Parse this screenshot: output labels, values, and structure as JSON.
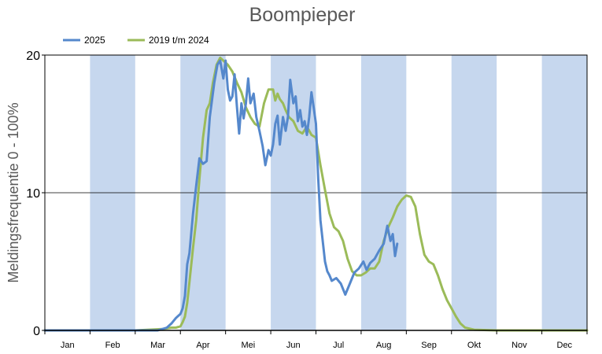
{
  "chart_data": {
    "type": "line",
    "title": "Boompieper",
    "xlabel": "",
    "ylabel": "Meldingsfrequentie 0 - 100%",
    "ylim": [
      0,
      20
    ],
    "yticks": [
      0,
      10,
      20
    ],
    "categories": [
      "Jan",
      "Feb",
      "Mar",
      "Apr",
      "Mei",
      "Jun",
      "Jul",
      "Aug",
      "Sep",
      "Okt",
      "Nov",
      "Dec"
    ],
    "shaded_months": [
      "Feb",
      "Apr",
      "Jun",
      "Aug",
      "Okt",
      "Dec"
    ],
    "x_unit": "month (0 = 1 Jan, 12 = 31 Dec)",
    "legend_position": "top-left",
    "grid": "horizontal line at 10",
    "colors": {
      "shade": "#c6d7ee",
      "series_2025": "#5588cc",
      "series_2019_2024": "#9bbb59"
    },
    "series": [
      {
        "name": "2025",
        "color": "#5588cc",
        "points": [
          [
            0,
            0
          ],
          [
            1,
            0
          ],
          [
            2,
            0
          ],
          [
            2.5,
            0
          ],
          [
            2.7,
            0.2
          ],
          [
            2.8,
            0.5
          ],
          [
            2.9,
            0.9
          ],
          [
            3.0,
            1.2
          ],
          [
            3.05,
            1.6
          ],
          [
            3.1,
            2.5
          ],
          [
            3.15,
            4.8
          ],
          [
            3.2,
            5.6
          ],
          [
            3.28,
            8.5
          ],
          [
            3.35,
            10.5
          ],
          [
            3.42,
            12.5
          ],
          [
            3.5,
            12.1
          ],
          [
            3.58,
            12.3
          ],
          [
            3.65,
            15.5
          ],
          [
            3.75,
            18.0
          ],
          [
            3.82,
            19.3
          ],
          [
            3.88,
            19.6
          ],
          [
            3.95,
            18.3
          ],
          [
            4.0,
            19.6
          ],
          [
            4.05,
            17.5
          ],
          [
            4.1,
            16.7
          ],
          [
            4.15,
            17.0
          ],
          [
            4.2,
            18.6
          ],
          [
            4.25,
            16.3
          ],
          [
            4.3,
            14.3
          ],
          [
            4.35,
            16.5
          ],
          [
            4.4,
            15.4
          ],
          [
            4.45,
            16.5
          ],
          [
            4.5,
            18.3
          ],
          [
            4.55,
            16.5
          ],
          [
            4.62,
            17.2
          ],
          [
            4.68,
            15.5
          ],
          [
            4.75,
            14.5
          ],
          [
            4.82,
            13.4
          ],
          [
            4.88,
            12.0
          ],
          [
            4.95,
            13.1
          ],
          [
            5.0,
            12.7
          ],
          [
            5.05,
            13.5
          ],
          [
            5.1,
            15.0
          ],
          [
            5.15,
            15.6
          ],
          [
            5.2,
            13.5
          ],
          [
            5.27,
            15.5
          ],
          [
            5.33,
            14.5
          ],
          [
            5.38,
            15.5
          ],
          [
            5.43,
            18.2
          ],
          [
            5.5,
            16.5
          ],
          [
            5.55,
            17.0
          ],
          [
            5.6,
            15.2
          ],
          [
            5.65,
            16.0
          ],
          [
            5.7,
            14.8
          ],
          [
            5.75,
            15.2
          ],
          [
            5.8,
            14.2
          ],
          [
            5.85,
            15.5
          ],
          [
            5.9,
            17.3
          ],
          [
            5.95,
            16.2
          ],
          [
            6.0,
            15.0
          ],
          [
            6.05,
            11.0
          ],
          [
            6.1,
            8.0
          ],
          [
            6.15,
            6.5
          ],
          [
            6.2,
            5.0
          ],
          [
            6.25,
            4.3
          ],
          [
            6.3,
            4.0
          ],
          [
            6.35,
            3.6
          ],
          [
            6.45,
            3.8
          ],
          [
            6.55,
            3.4
          ],
          [
            6.65,
            2.6
          ],
          [
            6.75,
            3.4
          ],
          [
            6.85,
            4.2
          ],
          [
            6.95,
            4.5
          ],
          [
            7.05,
            5.0
          ],
          [
            7.12,
            4.4
          ],
          [
            7.2,
            4.9
          ],
          [
            7.3,
            5.2
          ],
          [
            7.4,
            5.8
          ],
          [
            7.5,
            6.3
          ],
          [
            7.58,
            7.6
          ],
          [
            7.65,
            6.5
          ],
          [
            7.7,
            7.0
          ],
          [
            7.75,
            5.4
          ],
          [
            7.8,
            6.3
          ]
        ]
      },
      {
        "name": "2019 t/m 2024",
        "color": "#9bbb59",
        "points": [
          [
            0,
            0
          ],
          [
            1,
            0
          ],
          [
            2,
            0
          ],
          [
            2.3,
            0.05
          ],
          [
            2.6,
            0.1
          ],
          [
            2.8,
            0.2
          ],
          [
            2.9,
            0.2
          ],
          [
            3.0,
            0.3
          ],
          [
            3.05,
            0.6
          ],
          [
            3.1,
            1.0
          ],
          [
            3.15,
            2.0
          ],
          [
            3.2,
            3.5
          ],
          [
            3.28,
            6.0
          ],
          [
            3.35,
            8.0
          ],
          [
            3.42,
            11.0
          ],
          [
            3.5,
            14.0
          ],
          [
            3.58,
            16.0
          ],
          [
            3.65,
            16.5
          ],
          [
            3.72,
            18.0
          ],
          [
            3.8,
            19.3
          ],
          [
            3.88,
            19.8
          ],
          [
            3.95,
            19.6
          ],
          [
            4.05,
            19.3
          ],
          [
            4.15,
            18.8
          ],
          [
            4.25,
            18.0
          ],
          [
            4.35,
            17.3
          ],
          [
            4.45,
            16.2
          ],
          [
            4.55,
            15.5
          ],
          [
            4.65,
            15.0
          ],
          [
            4.75,
            14.8
          ],
          [
            4.85,
            16.5
          ],
          [
            4.95,
            17.5
          ],
          [
            5.05,
            17.5
          ],
          [
            5.1,
            16.7
          ],
          [
            5.15,
            17.2
          ],
          [
            5.2,
            16.8
          ],
          [
            5.27,
            16.5
          ],
          [
            5.33,
            16.0
          ],
          [
            5.4,
            15.5
          ],
          [
            5.5,
            15.2
          ],
          [
            5.6,
            14.5
          ],
          [
            5.7,
            14.3
          ],
          [
            5.8,
            14.8
          ],
          [
            5.9,
            14.2
          ],
          [
            6.0,
            14.0
          ],
          [
            6.1,
            12.0
          ],
          [
            6.2,
            10.2
          ],
          [
            6.3,
            8.5
          ],
          [
            6.4,
            7.5
          ],
          [
            6.5,
            7.2
          ],
          [
            6.6,
            6.5
          ],
          [
            6.7,
            5.2
          ],
          [
            6.8,
            4.3
          ],
          [
            6.9,
            4.0
          ],
          [
            7.0,
            4.0
          ],
          [
            7.1,
            4.2
          ],
          [
            7.2,
            4.5
          ],
          [
            7.3,
            4.5
          ],
          [
            7.4,
            5.0
          ],
          [
            7.5,
            6.5
          ],
          [
            7.6,
            7.5
          ],
          [
            7.7,
            8.2
          ],
          [
            7.8,
            9.0
          ],
          [
            7.9,
            9.5
          ],
          [
            8.0,
            9.8
          ],
          [
            8.1,
            9.7
          ],
          [
            8.2,
            9.0
          ],
          [
            8.3,
            7.0
          ],
          [
            8.4,
            5.5
          ],
          [
            8.5,
            5.0
          ],
          [
            8.6,
            4.8
          ],
          [
            8.7,
            4.0
          ],
          [
            8.8,
            3.0
          ],
          [
            8.9,
            2.2
          ],
          [
            9.0,
            1.6
          ],
          [
            9.1,
            1.0
          ],
          [
            9.2,
            0.5
          ],
          [
            9.3,
            0.2
          ],
          [
            9.5,
            0.05
          ],
          [
            10.0,
            0
          ],
          [
            11.0,
            0
          ],
          [
            12.0,
            0
          ]
        ]
      }
    ]
  }
}
